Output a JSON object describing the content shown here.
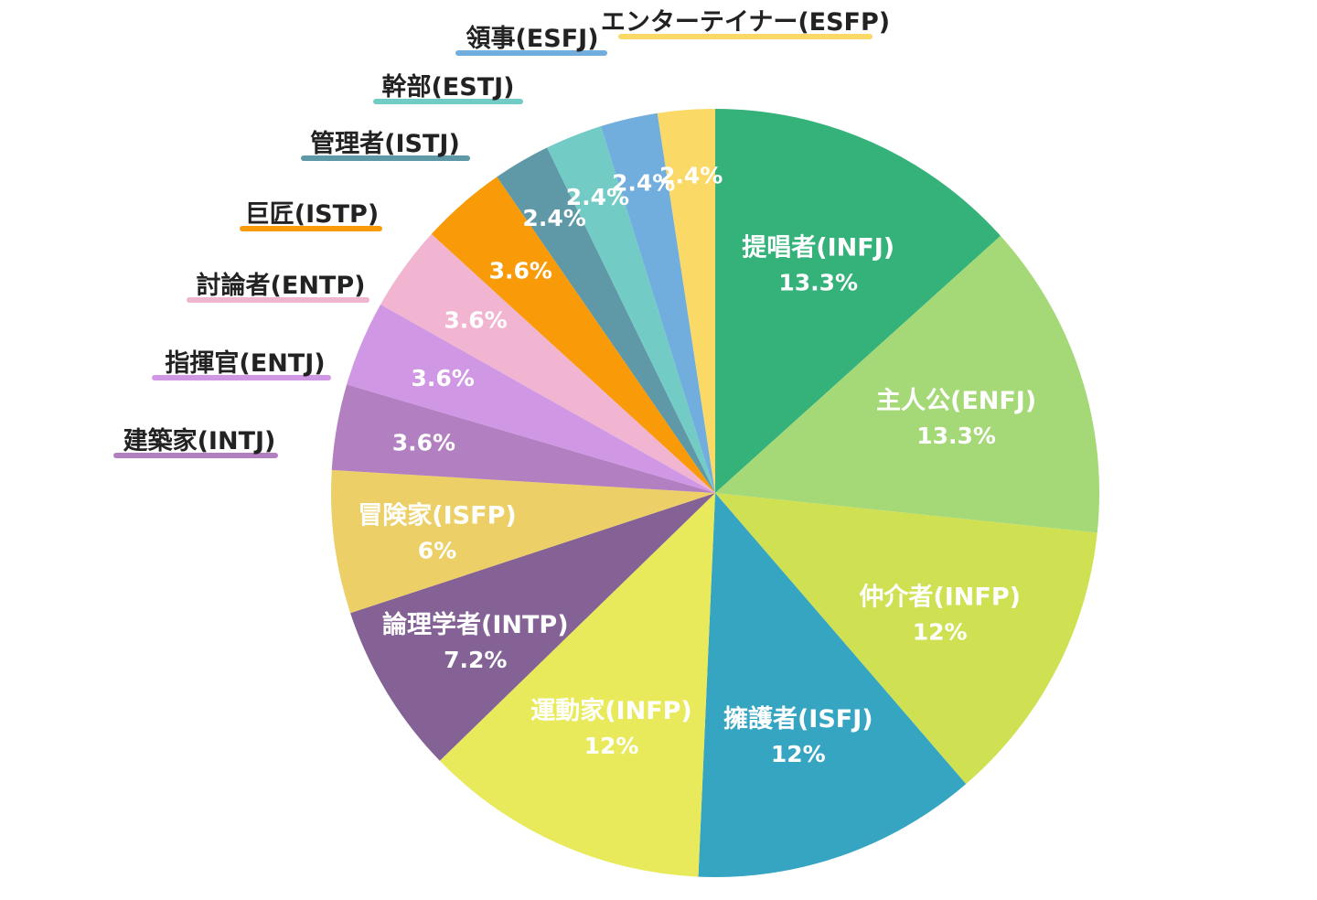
{
  "chart_data": {
    "type": "pie",
    "start_angle_deg": 0,
    "direction": "clockwise",
    "slices": [
      {
        "name": "提唱者(INFJ)",
        "pct_label": "13.3%",
        "value": 13.3,
        "color": "#35b27a",
        "label_inside": true,
        "text_color": "#ffffff"
      },
      {
        "name": "主人公(ENFJ)",
        "pct_label": "13.3%",
        "value": 13.3,
        "color": "#a5d876",
        "label_inside": true,
        "text_color": "#ffffff"
      },
      {
        "name": "仲介者(INFP)",
        "pct_label": "12%",
        "value": 12.0,
        "color": "#cfe153",
        "label_inside": true,
        "text_color": "#ffffff"
      },
      {
        "name": "擁護者(ISFJ)",
        "pct_label": "12%",
        "value": 12.0,
        "color": "#35a5c1",
        "label_inside": true,
        "text_color": "#ffffff"
      },
      {
        "name": "運動家(INFP)",
        "pct_label": "12%",
        "value": 12.0,
        "color": "#e9ea5b",
        "label_inside": true,
        "text_color": "#ffffff"
      },
      {
        "name": "論理学者(INTP)",
        "pct_label": "7.2%",
        "value": 7.2,
        "color": "#856296",
        "label_inside": true,
        "text_color": "#ffffff"
      },
      {
        "name": "冒険家(ISFP)",
        "pct_label": "6%",
        "value": 6.0,
        "color": "#ecd067",
        "label_inside": true,
        "text_color": "#ffffff"
      },
      {
        "name": "建築家(INTJ)",
        "pct_label": "3.6%",
        "value": 3.6,
        "color": "#b27fc1",
        "label_inside": false,
        "text_color": "#ffffff"
      },
      {
        "name": "指揮官(ENTJ)",
        "pct_label": "3.6%",
        "value": 3.6,
        "color": "#d098e4",
        "label_inside": false,
        "text_color": "#ffffff"
      },
      {
        "name": "討論者(ENTP)",
        "pct_label": "3.6%",
        "value": 3.6,
        "color": "#f1b5d2",
        "label_inside": false,
        "text_color": "#ffffff"
      },
      {
        "name": "巨匠(ISTP)",
        "pct_label": "3.6%",
        "value": 3.6,
        "color": "#f99a08",
        "label_inside": false,
        "text_color": "#ffffff"
      },
      {
        "name": "管理者(ISTJ)",
        "pct_label": "2.4%",
        "value": 2.4,
        "color": "#5f98a6",
        "label_inside": false,
        "text_color": "#ffffff"
      },
      {
        "name": "幹部(ESTJ)",
        "pct_label": "2.4%",
        "value": 2.4,
        "color": "#73cbc6",
        "label_inside": false,
        "text_color": "#ffffff"
      },
      {
        "name": "領事(ESFJ)",
        "pct_label": "2.4%",
        "value": 2.4,
        "color": "#71aedd",
        "label_inside": false,
        "text_color": "#ffffff"
      },
      {
        "name": "エンターテイナー(ESFP)",
        "pct_label": "2.4%",
        "value": 2.4,
        "color": "#fad967",
        "label_inside": false,
        "text_color": "#ffffff"
      }
    ],
    "outside_label_text_color": "#222222"
  }
}
